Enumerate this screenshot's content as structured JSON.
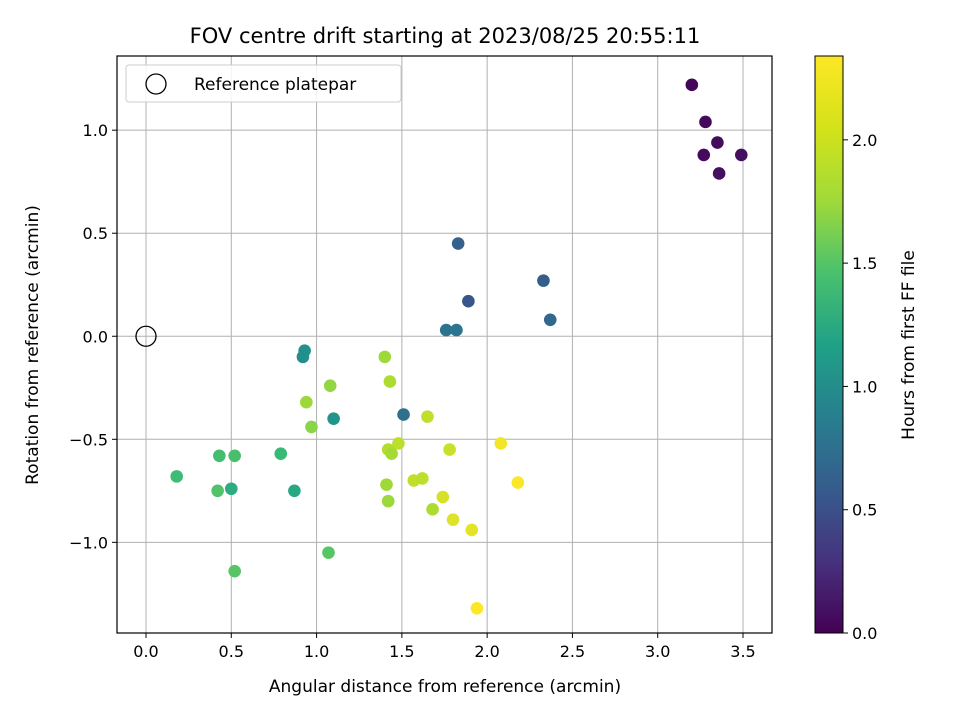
{
  "chart_data": {
    "type": "scatter",
    "title": "FOV centre drift starting at 2023/08/25 20:55:11",
    "xlabel": "Angular distance from reference (arcmin)",
    "ylabel": "Rotation from reference (arcmin)",
    "colorbar_label": "Hours from first FF file",
    "xlim": [
      -0.17,
      3.67
    ],
    "ylim": [
      -1.44,
      1.36
    ],
    "clim": [
      0.0,
      2.34
    ],
    "xticks": [
      0.0,
      0.5,
      1.0,
      1.5,
      2.0,
      2.5,
      3.0,
      3.5
    ],
    "xtick_labels": [
      "0.0",
      "0.5",
      "1.0",
      "1.5",
      "2.0",
      "2.5",
      "3.0",
      "3.5"
    ],
    "yticks": [
      -1.0,
      -0.5,
      0.0,
      0.5,
      1.0
    ],
    "ytick_labels": [
      "−1.0",
      "−0.5",
      "0.0",
      "0.5",
      "1.0"
    ],
    "cticks": [
      0.0,
      0.5,
      1.0,
      1.5,
      2.0
    ],
    "ctick_labels": [
      "0.0",
      "0.5",
      "1.0",
      "1.5",
      "2.0"
    ],
    "grid": true,
    "colormap": "viridis",
    "legend": {
      "label": "Reference platepar",
      "placement": "top-left"
    },
    "reference_point": {
      "x": 0.0,
      "y": 0.0
    },
    "points": [
      {
        "x": 3.2,
        "y": 1.22,
        "t": 0.03
      },
      {
        "x": 3.28,
        "y": 1.04,
        "t": 0.05
      },
      {
        "x": 3.35,
        "y": 0.94,
        "t": 0.07
      },
      {
        "x": 3.27,
        "y": 0.88,
        "t": 0.06
      },
      {
        "x": 3.49,
        "y": 0.88,
        "t": 0.09
      },
      {
        "x": 3.36,
        "y": 0.79,
        "t": 0.1
      },
      {
        "x": 1.83,
        "y": 0.45,
        "t": 0.72
      },
      {
        "x": 2.33,
        "y": 0.27,
        "t": 0.7
      },
      {
        "x": 1.89,
        "y": 0.17,
        "t": 0.62
      },
      {
        "x": 2.37,
        "y": 0.08,
        "t": 0.78
      },
      {
        "x": 1.76,
        "y": 0.03,
        "t": 0.88
      },
      {
        "x": 1.82,
        "y": 0.03,
        "t": 0.92
      },
      {
        "x": 0.93,
        "y": -0.07,
        "t": 1.18
      },
      {
        "x": 0.92,
        "y": -0.1,
        "t": 1.16
      },
      {
        "x": 1.51,
        "y": -0.38,
        "t": 0.86
      },
      {
        "x": 1.1,
        "y": -0.4,
        "t": 1.22
      },
      {
        "x": 1.4,
        "y": -0.1,
        "t": 2.0
      },
      {
        "x": 1.43,
        "y": -0.22,
        "t": 2.05
      },
      {
        "x": 1.08,
        "y": -0.24,
        "t": 1.95
      },
      {
        "x": 0.94,
        "y": -0.32,
        "t": 1.98
      },
      {
        "x": 0.97,
        "y": -0.44,
        "t": 1.92
      },
      {
        "x": 1.65,
        "y": -0.39,
        "t": 2.12
      },
      {
        "x": 1.48,
        "y": -0.52,
        "t": 2.1
      },
      {
        "x": 1.42,
        "y": -0.55,
        "t": 2.07
      },
      {
        "x": 1.44,
        "y": -0.57,
        "t": 2.02
      },
      {
        "x": 1.78,
        "y": -0.55,
        "t": 2.15
      },
      {
        "x": 2.08,
        "y": -0.52,
        "t": 2.3
      },
      {
        "x": 2.18,
        "y": -0.71,
        "t": 2.33
      },
      {
        "x": 1.57,
        "y": -0.7,
        "t": 2.12
      },
      {
        "x": 1.62,
        "y": -0.69,
        "t": 2.1
      },
      {
        "x": 1.41,
        "y": -0.72,
        "t": 2.0
      },
      {
        "x": 1.74,
        "y": -0.78,
        "t": 2.2
      },
      {
        "x": 1.42,
        "y": -0.8,
        "t": 1.98
      },
      {
        "x": 1.68,
        "y": -0.84,
        "t": 2.05
      },
      {
        "x": 1.8,
        "y": -0.89,
        "t": 2.22
      },
      {
        "x": 1.91,
        "y": -0.94,
        "t": 2.25
      },
      {
        "x": 1.94,
        "y": -1.32,
        "t": 2.34
      },
      {
        "x": 0.18,
        "y": -0.68,
        "t": 1.6
      },
      {
        "x": 0.43,
        "y": -0.58,
        "t": 1.63
      },
      {
        "x": 0.52,
        "y": -0.58,
        "t": 1.65
      },
      {
        "x": 0.79,
        "y": -0.57,
        "t": 1.58
      },
      {
        "x": 0.42,
        "y": -0.75,
        "t": 1.68
      },
      {
        "x": 0.5,
        "y": -0.74,
        "t": 1.45
      },
      {
        "x": 0.87,
        "y": -0.75,
        "t": 1.4
      },
      {
        "x": 1.07,
        "y": -1.05,
        "t": 1.72
      },
      {
        "x": 0.52,
        "y": -1.14,
        "t": 1.72
      }
    ]
  }
}
